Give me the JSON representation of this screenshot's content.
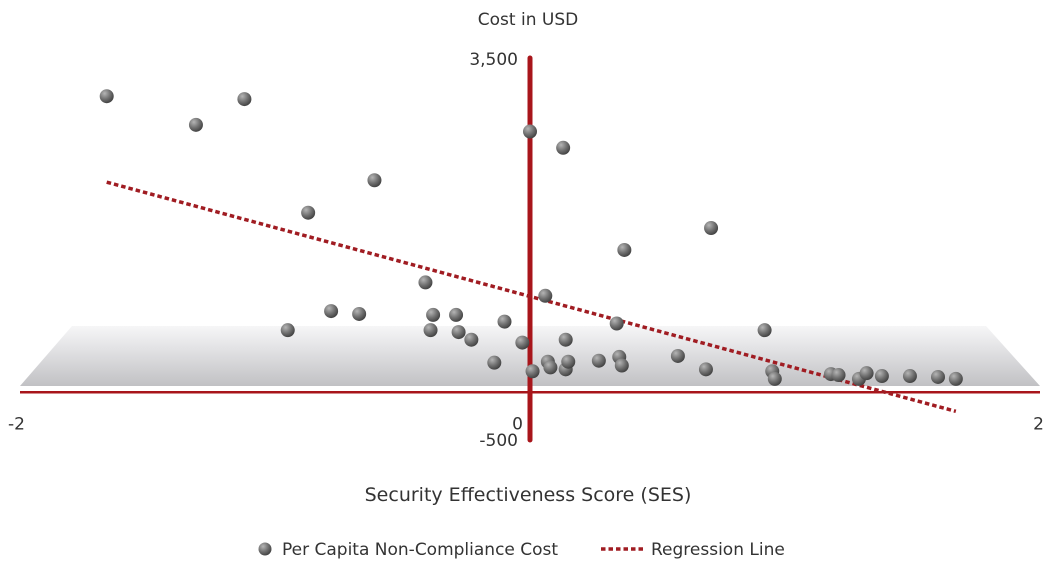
{
  "chart_data": {
    "type": "scatter",
    "title": "",
    "ylabel": "Cost in USD",
    "xlabel": "Security Effectiveness Score (SES)",
    "xlim": [
      -2,
      2
    ],
    "ylim": [
      -500,
      3500
    ],
    "x_ticks": [
      {
        "value": -2,
        "label": "-2"
      },
      {
        "value": 0,
        "label": "0"
      },
      {
        "value": 2,
        "label": "2"
      }
    ],
    "y_ticks": [
      {
        "value": 3500,
        "label": "3,500"
      },
      {
        "value": -500,
        "label": "-500"
      }
    ],
    "grid": false,
    "legend_position": "bottom",
    "series": [
      {
        "name": "Per Capita Non-Compliance Cost",
        "type": "scatter",
        "color": "#6e6e6e",
        "points": [
          {
            "x": -1.66,
            "y": 3100
          },
          {
            "x": -1.31,
            "y": 2800
          },
          {
            "x": -1.12,
            "y": 3070
          },
          {
            "x": -0.95,
            "y": 650
          },
          {
            "x": -0.87,
            "y": 1880
          },
          {
            "x": -0.78,
            "y": 850
          },
          {
            "x": -0.67,
            "y": 820
          },
          {
            "x": -0.61,
            "y": 2220
          },
          {
            "x": -0.41,
            "y": 1150
          },
          {
            "x": -0.39,
            "y": 650
          },
          {
            "x": -0.38,
            "y": 810
          },
          {
            "x": -0.29,
            "y": 810
          },
          {
            "x": -0.28,
            "y": 630
          },
          {
            "x": -0.23,
            "y": 550
          },
          {
            "x": -0.14,
            "y": 310
          },
          {
            "x": -0.1,
            "y": 740
          },
          {
            "x": -0.03,
            "y": 520
          },
          {
            "x": 0.01,
            "y": 220
          },
          {
            "x": 0.0,
            "y": 2730
          },
          {
            "x": 0.06,
            "y": 1010
          },
          {
            "x": 0.07,
            "y": 320
          },
          {
            "x": 0.08,
            "y": 260
          },
          {
            "x": 0.14,
            "y": 240
          },
          {
            "x": 0.14,
            "y": 550
          },
          {
            "x": 0.15,
            "y": 320
          },
          {
            "x": 0.13,
            "y": 2560
          },
          {
            "x": 0.27,
            "y": 330
          },
          {
            "x": 0.34,
            "y": 720
          },
          {
            "x": 0.35,
            "y": 370
          },
          {
            "x": 0.36,
            "y": 280
          },
          {
            "x": 0.37,
            "y": 1490
          },
          {
            "x": 0.58,
            "y": 380
          },
          {
            "x": 0.69,
            "y": 240
          },
          {
            "x": 0.71,
            "y": 1720
          },
          {
            "x": 0.92,
            "y": 650
          },
          {
            "x": 0.95,
            "y": 220
          },
          {
            "x": 0.96,
            "y": 140
          },
          {
            "x": 1.18,
            "y": 190
          },
          {
            "x": 1.21,
            "y": 180
          },
          {
            "x": 1.29,
            "y": 140
          },
          {
            "x": 1.32,
            "y": 200
          },
          {
            "x": 1.38,
            "y": 170
          },
          {
            "x": 1.49,
            "y": 170
          },
          {
            "x": 1.6,
            "y": 160
          },
          {
            "x": 1.67,
            "y": 140
          }
        ]
      },
      {
        "name": "Regression Line",
        "type": "line",
        "style": "dotted",
        "color": "#a01c22",
        "points": [
          {
            "x": -1.66,
            "y": 2200
          },
          {
            "x": 1.67,
            "y": -200
          }
        ]
      }
    ],
    "colors": {
      "axis": "#a8151b",
      "floor_top": "#e9e9ea",
      "floor_bottom": "#c4c4c6"
    }
  }
}
